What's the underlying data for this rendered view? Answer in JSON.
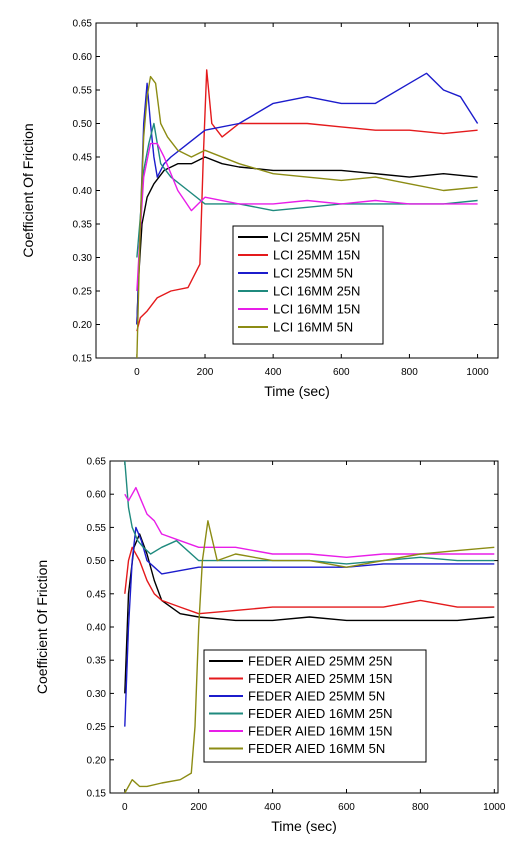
{
  "chart_data": [
    {
      "type": "line",
      "title": "",
      "xlabel": "Time (sec)",
      "ylabel": "Coefficient Of Friction",
      "xlim": [
        -120,
        1060
      ],
      "ylim": [
        0.15,
        0.65
      ],
      "xticks": [
        0,
        200,
        400,
        600,
        800,
        1000
      ],
      "yticks": [
        0.15,
        0.2,
        0.25,
        0.3,
        0.35,
        0.4,
        0.45,
        0.5,
        0.55,
        0.6,
        0.65
      ],
      "ytick_labels": [
        "0.15",
        "0.20",
        "0.25",
        "0.30",
        "0.35",
        "0.40",
        "0.45",
        "0.50",
        "0.55",
        "0.60",
        "0.65"
      ],
      "grid": false,
      "legend_position": "center",
      "series": [
        {
          "name": "LCI 25MM 25N",
          "color": "#000000",
          "x": [
            0,
            5,
            15,
            30,
            50,
            80,
            120,
            160,
            200,
            250,
            300,
            400,
            500,
            600,
            700,
            800,
            900,
            1000
          ],
          "y": [
            0.2,
            0.27,
            0.35,
            0.39,
            0.41,
            0.43,
            0.44,
            0.44,
            0.45,
            0.44,
            0.435,
            0.43,
            0.43,
            0.43,
            0.425,
            0.42,
            0.425,
            0.42
          ]
        },
        {
          "name": "LCI 25MM 15N",
          "color": "#e41a1c",
          "x": [
            0,
            10,
            30,
            60,
            100,
            150,
            185,
            195,
            205,
            220,
            250,
            300,
            400,
            500,
            600,
            700,
            800,
            900,
            1000
          ],
          "y": [
            0.19,
            0.21,
            0.22,
            0.24,
            0.25,
            0.255,
            0.29,
            0.45,
            0.58,
            0.5,
            0.48,
            0.5,
            0.5,
            0.5,
            0.495,
            0.49,
            0.49,
            0.485,
            0.49
          ]
        },
        {
          "name": "LCI 25MM 5N",
          "color": "#1c1ccc",
          "x": [
            0,
            10,
            20,
            30,
            40,
            50,
            60,
            80,
            100,
            150,
            200,
            300,
            400,
            500,
            600,
            700,
            800,
            850,
            900,
            950,
            1000
          ],
          "y": [
            0.2,
            0.35,
            0.5,
            0.56,
            0.5,
            0.45,
            0.42,
            0.44,
            0.45,
            0.47,
            0.49,
            0.5,
            0.53,
            0.54,
            0.53,
            0.53,
            0.56,
            0.575,
            0.55,
            0.54,
            0.5
          ]
        },
        {
          "name": "LCI 16MM 25N",
          "color": "#1f8a7e",
          "x": [
            0,
            10,
            20,
            35,
            50,
            70,
            100,
            150,
            200,
            300,
            400,
            500,
            600,
            700,
            800,
            900,
            1000
          ],
          "y": [
            0.3,
            0.36,
            0.43,
            0.47,
            0.5,
            0.44,
            0.42,
            0.4,
            0.38,
            0.38,
            0.37,
            0.375,
            0.38,
            0.38,
            0.38,
            0.38,
            0.385
          ]
        },
        {
          "name": "LCI 16MM 15N",
          "color": "#e81ee8",
          "x": [
            0,
            10,
            20,
            40,
            60,
            80,
            120,
            160,
            180,
            200,
            300,
            400,
            500,
            600,
            700,
            800,
            900,
            1000
          ],
          "y": [
            0.25,
            0.34,
            0.42,
            0.47,
            0.47,
            0.45,
            0.4,
            0.37,
            0.38,
            0.39,
            0.38,
            0.38,
            0.385,
            0.38,
            0.385,
            0.38,
            0.38,
            0.38
          ]
        },
        {
          "name": "LCI 16MM 5N",
          "color": "#8c8c14",
          "x": [
            0,
            10,
            20,
            30,
            40,
            55,
            70,
            90,
            120,
            160,
            200,
            300,
            400,
            500,
            600,
            700,
            800,
            900,
            1000
          ],
          "y": [
            0.15,
            0.35,
            0.48,
            0.54,
            0.57,
            0.56,
            0.5,
            0.48,
            0.46,
            0.45,
            0.46,
            0.44,
            0.425,
            0.42,
            0.415,
            0.42,
            0.41,
            0.4,
            0.405
          ]
        }
      ]
    },
    {
      "type": "line",
      "title": "",
      "xlabel": "Time (sec)",
      "ylabel": "Coefficient Of Friction",
      "xlim": [
        -40,
        1010
      ],
      "ylim": [
        0.15,
        0.65
      ],
      "xticks": [
        0,
        200,
        400,
        600,
        800,
        1000
      ],
      "yticks": [
        0.15,
        0.2,
        0.25,
        0.3,
        0.35,
        0.4,
        0.45,
        0.5,
        0.55,
        0.6,
        0.65
      ],
      "ytick_labels": [
        "0.15",
        "0.20",
        "0.25",
        "0.30",
        "0.35",
        "0.40",
        "0.45",
        "0.50",
        "0.55",
        "0.60",
        "0.65"
      ],
      "grid": false,
      "legend_position": "bottom-center",
      "series": [
        {
          "name": "FEDER AIED 25MM 25N",
          "color": "#000000",
          "x": [
            0,
            10,
            25,
            40,
            60,
            80,
            100,
            150,
            200,
            300,
            400,
            500,
            600,
            700,
            800,
            900,
            1000
          ],
          "y": [
            0.3,
            0.45,
            0.52,
            0.54,
            0.51,
            0.47,
            0.44,
            0.42,
            0.415,
            0.41,
            0.41,
            0.415,
            0.41,
            0.41,
            0.41,
            0.41,
            0.415
          ]
        },
        {
          "name": "FEDER AIED 25MM 15N",
          "color": "#e41a1c",
          "x": [
            0,
            10,
            20,
            40,
            60,
            80,
            100,
            150,
            200,
            300,
            400,
            500,
            600,
            700,
            800,
            900,
            1000
          ],
          "y": [
            0.45,
            0.5,
            0.52,
            0.5,
            0.47,
            0.45,
            0.44,
            0.43,
            0.42,
            0.425,
            0.43,
            0.43,
            0.43,
            0.43,
            0.44,
            0.43,
            0.43
          ]
        },
        {
          "name": "FEDER AIED 25MM 5N",
          "color": "#1c1ccc",
          "x": [
            0,
            10,
            20,
            30,
            45,
            60,
            80,
            100,
            150,
            200,
            300,
            400,
            500,
            600,
            700,
            800,
            900,
            1000
          ],
          "y": [
            0.25,
            0.4,
            0.5,
            0.55,
            0.53,
            0.5,
            0.49,
            0.48,
            0.485,
            0.49,
            0.49,
            0.49,
            0.49,
            0.49,
            0.495,
            0.495,
            0.495,
            0.495
          ]
        },
        {
          "name": "FEDER AIED 16MM 25N",
          "color": "#1f8a7e",
          "x": [
            0,
            10,
            20,
            35,
            50,
            70,
            100,
            140,
            200,
            300,
            400,
            500,
            600,
            700,
            800,
            900,
            1000
          ],
          "y": [
            0.65,
            0.58,
            0.55,
            0.53,
            0.52,
            0.51,
            0.52,
            0.53,
            0.5,
            0.5,
            0.5,
            0.5,
            0.495,
            0.5,
            0.505,
            0.5,
            0.5
          ]
        },
        {
          "name": "FEDER AIED 16MM 15N",
          "color": "#e81ee8",
          "x": [
            0,
            10,
            20,
            30,
            45,
            60,
            80,
            100,
            150,
            200,
            300,
            400,
            500,
            600,
            700,
            800,
            900,
            1000
          ],
          "y": [
            0.6,
            0.59,
            0.6,
            0.61,
            0.59,
            0.57,
            0.56,
            0.54,
            0.53,
            0.52,
            0.52,
            0.51,
            0.51,
            0.505,
            0.51,
            0.51,
            0.51,
            0.51
          ]
        },
        {
          "name": "FEDER AIED 16MM 5N",
          "color": "#8c8c14",
          "x": [
            0,
            10,
            20,
            40,
            60,
            100,
            150,
            180,
            190,
            200,
            210,
            225,
            250,
            300,
            400,
            500,
            600,
            700,
            800,
            900,
            1000
          ],
          "y": [
            0.15,
            0.16,
            0.17,
            0.16,
            0.16,
            0.165,
            0.17,
            0.18,
            0.25,
            0.4,
            0.5,
            0.56,
            0.5,
            0.51,
            0.5,
            0.5,
            0.49,
            0.5,
            0.51,
            0.515,
            0.52
          ]
        }
      ]
    }
  ]
}
